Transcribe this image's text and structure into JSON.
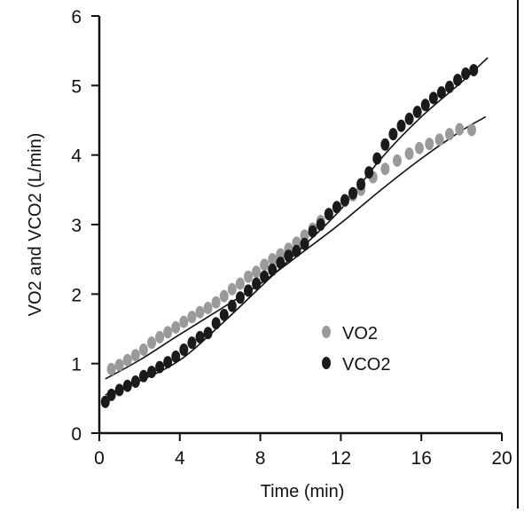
{
  "chart_data": {
    "type": "scatter",
    "title": "",
    "xlabel": "Time (min)",
    "ylabel": "VO2 and VCO2 (L/min)",
    "xlim": [
      0,
      20
    ],
    "ylim": [
      0,
      6
    ],
    "xticks": [
      0,
      4,
      8,
      12,
      16,
      20
    ],
    "yticks": [
      0,
      1,
      2,
      3,
      4,
      5,
      6
    ],
    "grid": false,
    "legend": "center-right",
    "series": [
      {
        "name": "VO2",
        "color": "#9a9a9a",
        "points": [
          [
            0.6,
            0.92
          ],
          [
            1.0,
            0.98
          ],
          [
            1.4,
            1.05
          ],
          [
            1.8,
            1.12
          ],
          [
            2.2,
            1.2
          ],
          [
            2.6,
            1.3
          ],
          [
            3.0,
            1.38
          ],
          [
            3.4,
            1.45
          ],
          [
            3.8,
            1.52
          ],
          [
            4.2,
            1.6
          ],
          [
            4.6,
            1.67
          ],
          [
            5.0,
            1.74
          ],
          [
            5.4,
            1.8
          ],
          [
            5.8,
            1.88
          ],
          [
            6.2,
            1.97
          ],
          [
            6.6,
            2.07
          ],
          [
            7.0,
            2.15
          ],
          [
            7.4,
            2.25
          ],
          [
            7.8,
            2.32
          ],
          [
            8.2,
            2.42
          ],
          [
            8.6,
            2.5
          ],
          [
            9.0,
            2.57
          ],
          [
            9.4,
            2.65
          ],
          [
            9.8,
            2.74
          ],
          [
            10.2,
            2.84
          ],
          [
            10.6,
            2.94
          ],
          [
            11.0,
            3.05
          ],
          [
            11.4,
            3.15
          ],
          [
            11.8,
            3.25
          ],
          [
            12.2,
            3.34
          ],
          [
            12.6,
            3.42
          ],
          [
            13.0,
            3.5
          ],
          [
            13.6,
            3.68
          ],
          [
            14.2,
            3.8
          ],
          [
            14.8,
            3.92
          ],
          [
            15.4,
            4.02
          ],
          [
            15.9,
            4.1
          ],
          [
            16.4,
            4.16
          ],
          [
            16.9,
            4.22
          ],
          [
            17.4,
            4.3
          ],
          [
            17.9,
            4.37
          ],
          [
            18.5,
            4.36
          ]
        ]
      },
      {
        "name": "VCO2",
        "color": "#1a1a1a",
        "points": [
          [
            0.3,
            0.45
          ],
          [
            0.6,
            0.55
          ],
          [
            1.0,
            0.62
          ],
          [
            1.4,
            0.68
          ],
          [
            1.8,
            0.74
          ],
          [
            2.2,
            0.82
          ],
          [
            2.6,
            0.88
          ],
          [
            3.0,
            0.95
          ],
          [
            3.4,
            1.02
          ],
          [
            3.8,
            1.1
          ],
          [
            4.2,
            1.2
          ],
          [
            4.6,
            1.3
          ],
          [
            5.0,
            1.38
          ],
          [
            5.4,
            1.44
          ],
          [
            5.8,
            1.58
          ],
          [
            6.2,
            1.7
          ],
          [
            6.6,
            1.83
          ],
          [
            7.0,
            1.95
          ],
          [
            7.4,
            2.05
          ],
          [
            7.8,
            2.15
          ],
          [
            8.2,
            2.25
          ],
          [
            8.6,
            2.35
          ],
          [
            9.0,
            2.45
          ],
          [
            9.4,
            2.55
          ],
          [
            9.8,
            2.62
          ],
          [
            10.2,
            2.72
          ],
          [
            10.6,
            2.9
          ],
          [
            11.0,
            3.0
          ],
          [
            11.4,
            3.15
          ],
          [
            11.8,
            3.25
          ],
          [
            12.2,
            3.35
          ],
          [
            12.6,
            3.45
          ],
          [
            13.0,
            3.58
          ],
          [
            13.4,
            3.75
          ],
          [
            13.8,
            3.95
          ],
          [
            14.2,
            4.15
          ],
          [
            14.6,
            4.3
          ],
          [
            15.0,
            4.42
          ],
          [
            15.4,
            4.52
          ],
          [
            15.8,
            4.62
          ],
          [
            16.2,
            4.72
          ],
          [
            16.6,
            4.82
          ],
          [
            17.0,
            4.9
          ],
          [
            17.4,
            4.98
          ],
          [
            17.8,
            5.08
          ],
          [
            18.2,
            5.17
          ],
          [
            18.6,
            5.22
          ]
        ]
      }
    ],
    "fit_lines": [
      {
        "series": "VO2",
        "x": [
          0.3,
          2,
          4,
          6,
          8,
          10,
          12,
          14,
          16,
          18,
          19.2
        ],
        "y": [
          0.78,
          1.05,
          1.42,
          1.78,
          2.15,
          2.58,
          3.02,
          3.5,
          3.95,
          4.35,
          4.55
        ]
      },
      {
        "series": "VCO2",
        "x": [
          0.3,
          2,
          4,
          6,
          8,
          10,
          12,
          14,
          16,
          18,
          19.3
        ],
        "y": [
          0.55,
          0.75,
          1.05,
          1.55,
          2.1,
          2.65,
          3.22,
          3.95,
          4.55,
          5.05,
          5.4
        ]
      }
    ]
  }
}
